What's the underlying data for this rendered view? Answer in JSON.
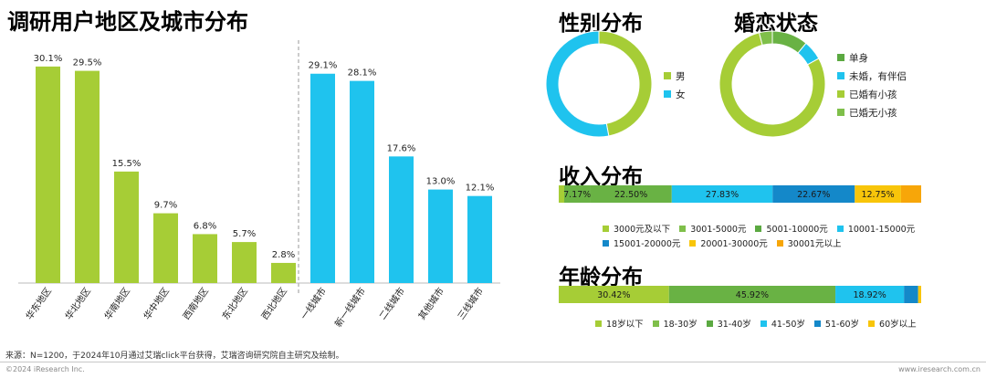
{
  "titles": {
    "region": "调研用户地区及城市分布",
    "gender": "性别分布",
    "marital": "婚恋状态",
    "income": "收入分布",
    "age": "年龄分布"
  },
  "colors": {
    "green": "#a6cd36",
    "cyan": "#1fc3ee",
    "midgreen": "#69b244",
    "blue": "#1488c9",
    "yellow": "#f8c50a",
    "orange": "#f7a609"
  },
  "chart_data": [
    {
      "id": "region",
      "type": "bar",
      "categories": [
        "华东地区",
        "华北地区",
        "华南地区",
        "华中地区",
        "西南地区",
        "东北地区",
        "西北地区",
        "一线城市",
        "新一线城市",
        "二线城市",
        "其他城市",
        "三线城市"
      ],
      "values": [
        30.1,
        29.5,
        15.5,
        9.7,
        6.8,
        5.7,
        2.8,
        29.1,
        28.1,
        17.6,
        13.0,
        12.1
      ],
      "labels": [
        "30.1%",
        "29.5%",
        "15.5%",
        "9.7%",
        "6.8%",
        "5.7%",
        "2.8%",
        "29.1%",
        "28.1%",
        "17.6%",
        "13.0%",
        "12.1%"
      ],
      "groups": [
        {
          "from": 0,
          "to": 6,
          "color": "green"
        },
        {
          "from": 7,
          "to": 11,
          "color": "cyan"
        }
      ],
      "ylim": [
        0,
        35
      ]
    },
    {
      "id": "gender",
      "type": "pie",
      "series": [
        {
          "name": "男",
          "value": 47,
          "color": "green"
        },
        {
          "name": "女",
          "value": 53,
          "color": "cyan"
        }
      ]
    },
    {
      "id": "marital",
      "type": "pie",
      "series": [
        {
          "name": "单身",
          "value": 11,
          "color": "midgreen"
        },
        {
          "name": "未婚，有伴侣",
          "value": 6,
          "color": "cyan"
        },
        {
          "name": "已婚有小孩",
          "value": 79,
          "color": "green"
        },
        {
          "name": "已婚无小孩",
          "value": 4,
          "color": "midgreen2"
        }
      ]
    },
    {
      "id": "income",
      "type": "bar",
      "orientation": "stacked-horizontal",
      "series": [
        {
          "name": "3000元及以下",
          "value": 1.51,
          "label": "",
          "color": "green"
        },
        {
          "name": "3001-5000元",
          "value": 7.17,
          "label": "7.17%",
          "color": "midgreen"
        },
        {
          "name": "5001-10000元",
          "value": 22.5,
          "label": "22.50%",
          "color": "midgreen"
        },
        {
          "name": "10001-15000元",
          "value": 27.83,
          "label": "27.83%",
          "color": "cyan"
        },
        {
          "name": "15001-20000元",
          "value": 22.67,
          "label": "22.67%",
          "color": "blue"
        },
        {
          "name": "20001-30000元",
          "value": 12.75,
          "label": "12.75%",
          "color": "yellow"
        },
        {
          "name": "30001元以上",
          "value": 5.57,
          "label": "",
          "color": "orange"
        }
      ]
    },
    {
      "id": "age",
      "type": "bar",
      "orientation": "stacked-horizontal",
      "series": [
        {
          "name": "18岁以下",
          "value": 0.0,
          "label": "",
          "color": "yellow"
        },
        {
          "name": "18-30岁",
          "value": 30.42,
          "label": "30.42%",
          "color": "green"
        },
        {
          "name": "31-40岁",
          "value": 45.92,
          "label": "45.92%",
          "color": "midgreen"
        },
        {
          "name": "41-50岁",
          "value": 18.92,
          "label": "18.92%",
          "color": "cyan"
        },
        {
          "name": "51-60岁",
          "value": 3.9,
          "label": "",
          "color": "blue"
        },
        {
          "name": "60岁以上",
          "value": 0.84,
          "label": "",
          "color": "yellow"
        }
      ]
    }
  ],
  "legends": {
    "gender": [
      "男",
      "女"
    ],
    "marital": [
      "单身",
      "未婚，有伴侣",
      "已婚有小孩",
      "已婚无小孩"
    ],
    "income_row1": [
      "3000元及以下",
      "3001-5000元",
      "5001-10000元",
      "10001-15000元"
    ],
    "income_row2": [
      "15001-20000元",
      "20001-30000元",
      "30001元以上"
    ],
    "age": [
      "18岁以下",
      "18-30岁",
      "31-40岁",
      "41-50岁",
      "51-60岁",
      "60岁以上"
    ]
  },
  "footer": {
    "source": "来源：N=1200，于2024年10月通过艾瑞click平台获得，艾瑞咨询研究院自主研究及绘制。",
    "copyright": "©2024 iResearch Inc.",
    "site": "www.iresearch.com.cn"
  }
}
